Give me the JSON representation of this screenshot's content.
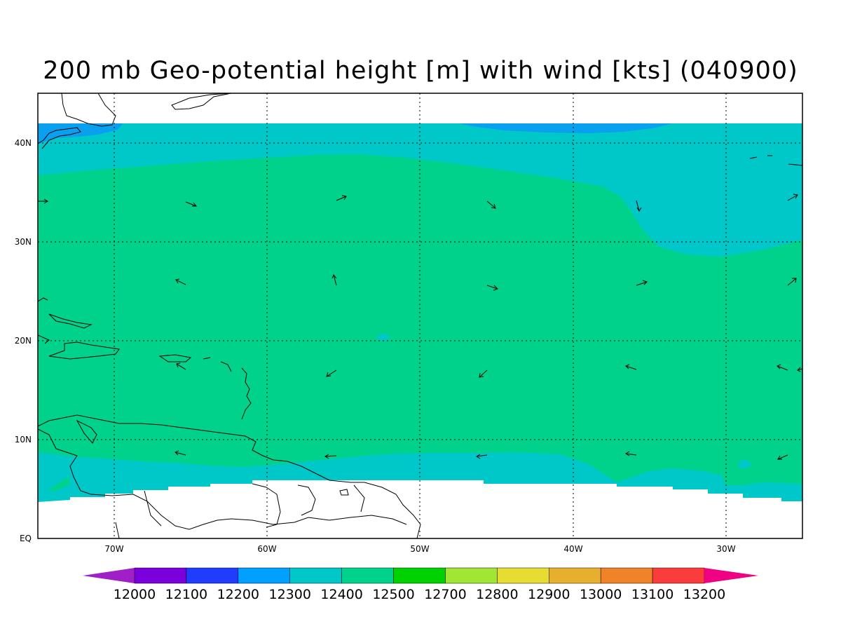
{
  "title": "200 mb Geo-potential height [m] with wind [kts] (040900)",
  "axes": {
    "lon_ticks": [
      "70W",
      "60W",
      "50W",
      "40W",
      "30W"
    ],
    "lat_ticks": [
      "EQ",
      "10N",
      "20N",
      "30N",
      "40N"
    ],
    "lon_range": [
      -75,
      -25
    ],
    "lat_range": [
      0,
      45
    ],
    "grid": true
  },
  "colorbar": {
    "levels": [
      "12000",
      "12100",
      "12200",
      "12300",
      "12400",
      "12500",
      "12700",
      "12800",
      "12900",
      "13000",
      "13100",
      "13200"
    ],
    "colors": [
      "#a020c8",
      "#7a00dc",
      "#1f3cff",
      "#00a0ff",
      "#00c8c8",
      "#00d28c",
      "#00d200",
      "#a0e632",
      "#e6dc32",
      "#e6af2d",
      "#f08228",
      "#fa3c3c",
      "#f00082"
    ]
  },
  "legend_placement": "bottom",
  "fields": {
    "height_colors": {
      "below_12200": "#0aa0f0",
      "12300_12400": "#00c8c8",
      "12400_12500": "#00d28c",
      "missing": "#ffffff"
    }
  }
}
